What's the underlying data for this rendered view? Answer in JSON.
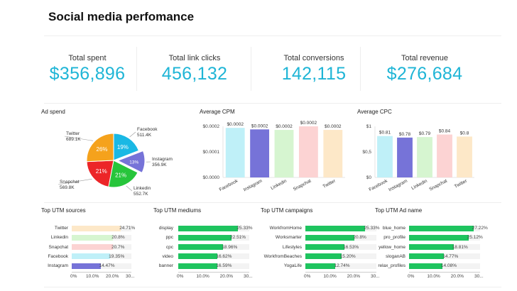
{
  "header": {
    "title": "Social media perfomance"
  },
  "kpis": [
    {
      "label": "Total spent",
      "value": "$356,896"
    },
    {
      "label": "Total link clicks",
      "value": "456,132"
    },
    {
      "label": "Total conversions",
      "value": "142,115"
    },
    {
      "label": "Total revenue",
      "value": "$276,684"
    }
  ],
  "colors": {
    "accent": "#1fb5d6",
    "green": "#1ec45f"
  },
  "chart_data": [
    {
      "type": "pie",
      "title": "Ad spend",
      "slices": [
        {
          "name": "Facebook",
          "value_label": "511.4K",
          "pct_label": "19%",
          "value": 511.4,
          "color": "#1ab8e4"
        },
        {
          "name": "Instagram",
          "value_label": "356.9K",
          "pct_label": "13%",
          "value": 356.9,
          "color": "#7673d8"
        },
        {
          "name": "Linkedin",
          "value_label": "552.7K",
          "pct_label": "21%",
          "value": 552.7,
          "color": "#27c53b"
        },
        {
          "name": "Snapchat",
          "value_label": "569.8K",
          "pct_label": "21%",
          "value": 569.8,
          "color": "#ec2528"
        },
        {
          "name": "Twitter",
          "value_label": "689.1K",
          "pct_label": "26%",
          "value": 689.1,
          "color": "#f5a21c"
        }
      ]
    },
    {
      "type": "bar",
      "title": "Average CPM",
      "categories": [
        "Facebook",
        "Instagram",
        "Linkedin",
        "Snapchat",
        "Twitter"
      ],
      "values": [
        0.0002,
        0.0002,
        0.0002,
        0.0002,
        0.0002
      ],
      "bar_heights": [
        0.97,
        0.94,
        0.93,
        1.0,
        0.93
      ],
      "data_labels": [
        "$0.0002",
        "$0.0002",
        "$0.0002",
        "$0.0002",
        "$0.0002"
      ],
      "y_ticks": [
        "$0.0000",
        "$0.0001",
        "$0.0002"
      ],
      "ylim": [
        0,
        0.0002
      ],
      "colors": [
        "#bff0f8",
        "#7673d8",
        "#d6f5d0",
        "#fcd3d3",
        "#fde8c8"
      ]
    },
    {
      "type": "bar",
      "title": "Average CPC",
      "categories": [
        "Facebook",
        "Instagram",
        "Linkedin",
        "Snapchat",
        "Twitter"
      ],
      "values": [
        0.81,
        0.78,
        0.79,
        0.84,
        0.8
      ],
      "data_labels": [
        "$0.81",
        "$0.78",
        "$0.79",
        "$0.84",
        "$0.8"
      ],
      "y_ticks": [
        "$0",
        "$0,5",
        "$1"
      ],
      "ylim": [
        0,
        1
      ],
      "colors": [
        "#bff0f8",
        "#7673d8",
        "#d6f5d0",
        "#fcd3d3",
        "#fde8c8"
      ]
    },
    {
      "type": "bar",
      "orientation": "horizontal",
      "title": "Top UTM sources",
      "categories": [
        "Twitter",
        "Linkedin",
        "Snapchat",
        "Facebook",
        "Instagram"
      ],
      "values": [
        24.71,
        20.8,
        20.7,
        19.35,
        14.47
      ],
      "pct_labels": [
        "24.71%",
        "20.8%",
        "20.7%",
        "19.35%",
        "14.47%"
      ],
      "x_ticks": [
        "0%",
        "10.0%",
        "20.0%",
        "30..."
      ],
      "xlim": [
        0,
        30
      ],
      "colors": [
        "#fde8c8",
        "#d6f5d0",
        "#fcd3d3",
        "#bff0f8",
        "#7673d8"
      ]
    },
    {
      "type": "bar",
      "orientation": "horizontal",
      "title": "Top UTM mediums",
      "categories": [
        "display",
        "ppc",
        "cpc",
        "video",
        "banner"
      ],
      "values": [
        25.33,
        22.51,
        18.96,
        16.62,
        16.59
      ],
      "pct_labels": [
        "25.33%",
        "22.51%",
        "18.96%",
        "16.62%",
        "16.59%"
      ],
      "x_ticks": [
        "0%",
        "10.0%",
        "20.0%",
        "30..."
      ],
      "xlim": [
        0,
        30
      ]
    },
    {
      "type": "bar",
      "orientation": "horizontal",
      "title": "Top UTM campaigns",
      "categories": [
        "WorkfromHome",
        "Worksmarter",
        "Lifestyles",
        "WorkfromBeaches",
        "YogaLife"
      ],
      "values": [
        25.33,
        20.8,
        16.53,
        15.2,
        12.74
      ],
      "pct_labels": [
        "25.33%",
        "20.8%",
        "16.53%",
        "15.20%",
        "12.74%"
      ],
      "x_ticks": [
        "0%",
        "10.0%",
        "20.0%",
        "30..."
      ],
      "xlim": [
        0,
        30
      ]
    },
    {
      "type": "bar",
      "orientation": "horizontal",
      "title": "Top UTM Ad name",
      "categories": [
        "blue_home",
        "pro_profile",
        "yellow_home",
        "sloganAB",
        "relax_profiles"
      ],
      "values": [
        27.22,
        25.12,
        18.81,
        14.77,
        14.08
      ],
      "pct_labels": [
        "27.22%",
        "25.12%",
        "18.81%",
        "14.77%",
        "14.08%"
      ],
      "x_ticks": [
        "0%",
        "10.0%",
        "20.0%",
        "30..."
      ],
      "xlim": [
        0,
        30
      ]
    }
  ]
}
